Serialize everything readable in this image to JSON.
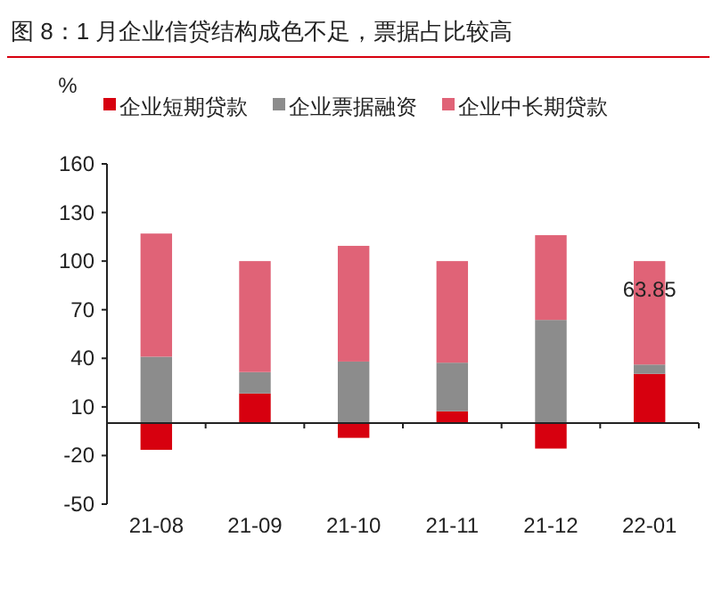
{
  "chart_data": {
    "type": "bar",
    "title": "图 8：1 月企业信贷结构成色不足，票据占比较高",
    "ylabel": "%",
    "categories": [
      "21-08",
      "21-09",
      "21-10",
      "21-11",
      "21-12",
      "22-01"
    ],
    "stacked": true,
    "legend": "top",
    "ylim": [
      -50,
      160
    ],
    "yticks": [
      -50,
      -20,
      10,
      40,
      70,
      100,
      130,
      160
    ],
    "series": [
      {
        "name": "企业短期贷款",
        "color": "#d7000f",
        "values": [
          -16.5,
          18.3,
          -9.1,
          7.3,
          -15.7,
          30.4
        ]
      },
      {
        "name": "企业票据融资",
        "color": "#8c8c8c",
        "values": [
          41,
          13.2,
          38,
          30,
          63.7,
          5.75
        ]
      },
      {
        "name": "企业中长期贷款",
        "color": "#e06377",
        "values": [
          76,
          68.5,
          71.4,
          62.7,
          52.3,
          63.85
        ],
        "value_labels": [
          null,
          null,
          null,
          null,
          null,
          "63.85"
        ]
      }
    ]
  }
}
